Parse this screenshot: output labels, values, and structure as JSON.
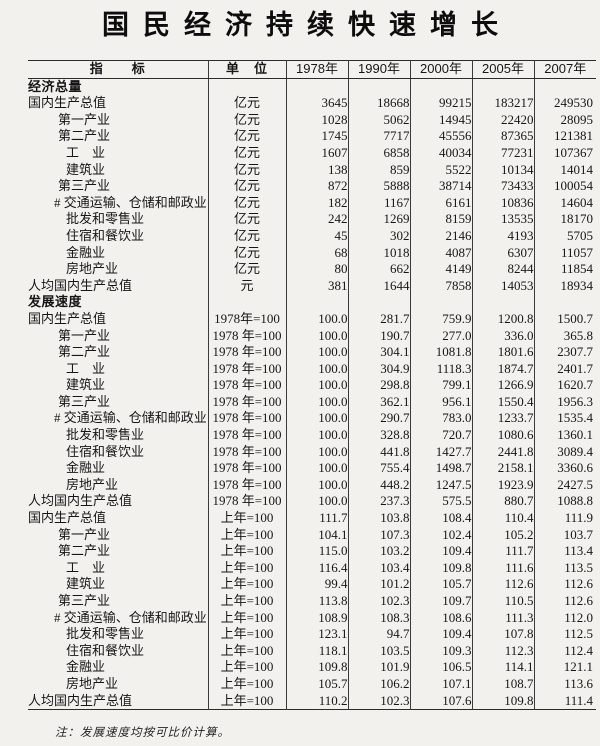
{
  "page": {
    "title": "国民经济持续快速增长",
    "footnote": "注：发展速度均按可比价计算。"
  },
  "colors": {
    "background": "#f3f1ee",
    "rule_line": "#2b2b2b",
    "text": "#141414"
  },
  "table": {
    "columns": [
      "指　　标",
      "单　位",
      "1978年",
      "1990年",
      "2000年",
      "2005年",
      "2007年"
    ],
    "rows": [
      {
        "label": "经济总量",
        "indent": 0,
        "section": true,
        "unit": "",
        "values": [
          "",
          "",
          "",
          "",
          ""
        ]
      },
      {
        "label": "国内生产总值",
        "indent": 0,
        "section": false,
        "unit": "亿元",
        "values": [
          "3645",
          "18668",
          "99215",
          "183217",
          "249530"
        ]
      },
      {
        "label": "第一产业",
        "indent": 1,
        "section": false,
        "unit": "亿元",
        "values": [
          "1028",
          "5062",
          "14945",
          "22420",
          "28095"
        ]
      },
      {
        "label": "第二产业",
        "indent": 1,
        "section": false,
        "unit": "亿元",
        "values": [
          "1745",
          "7717",
          "45556",
          "87365",
          "121381"
        ]
      },
      {
        "label": "工　业",
        "indent": 2,
        "section": false,
        "unit": "亿元",
        "values": [
          "1607",
          "6858",
          "40034",
          "77231",
          "107367"
        ]
      },
      {
        "label": "建筑业",
        "indent": 2,
        "section": false,
        "unit": "亿元",
        "values": [
          "138",
          "859",
          "5522",
          "10134",
          "14014"
        ]
      },
      {
        "label": "第三产业",
        "indent": 1,
        "section": false,
        "unit": "亿元",
        "values": [
          "872",
          "5888",
          "38714",
          "73433",
          "100054"
        ]
      },
      {
        "label": "# 交通运输、仓储和邮政业",
        "indent": "hash",
        "section": false,
        "unit": "亿元",
        "values": [
          "182",
          "1167",
          "6161",
          "10836",
          "14604"
        ]
      },
      {
        "label": "批发和零售业",
        "indent": 2,
        "section": false,
        "unit": "亿元",
        "values": [
          "242",
          "1269",
          "8159",
          "13535",
          "18170"
        ]
      },
      {
        "label": "住宿和餐饮业",
        "indent": 2,
        "section": false,
        "unit": "亿元",
        "values": [
          "45",
          "302",
          "2146",
          "4193",
          "5705"
        ]
      },
      {
        "label": "金融业",
        "indent": 2,
        "section": false,
        "unit": "亿元",
        "values": [
          "68",
          "1018",
          "4087",
          "6307",
          "11057"
        ]
      },
      {
        "label": "房地产业",
        "indent": 2,
        "section": false,
        "unit": "亿元",
        "values": [
          "80",
          "662",
          "4149",
          "8244",
          "11854"
        ]
      },
      {
        "label": "人均国内生产总值",
        "indent": 0,
        "section": false,
        "unit": "元",
        "values": [
          "381",
          "1644",
          "7858",
          "14053",
          "18934"
        ]
      },
      {
        "label": "发展速度",
        "indent": 0,
        "section": true,
        "unit": "",
        "values": [
          "",
          "",
          "",
          "",
          ""
        ]
      },
      {
        "label": "国内生产总值",
        "indent": 0,
        "section": false,
        "unit": "1978年=100",
        "values": [
          "100.0",
          "281.7",
          "759.9",
          "1200.8",
          "1500.7"
        ]
      },
      {
        "label": "第一产业",
        "indent": 1,
        "section": false,
        "unit": "1978 年=100",
        "values": [
          "100.0",
          "190.7",
          "277.0",
          "336.0",
          "365.8"
        ]
      },
      {
        "label": "第二产业",
        "indent": 1,
        "section": false,
        "unit": "1978 年=100",
        "values": [
          "100.0",
          "304.1",
          "1081.8",
          "1801.6",
          "2307.7"
        ]
      },
      {
        "label": "工　业",
        "indent": 2,
        "section": false,
        "unit": "1978 年=100",
        "values": [
          "100.0",
          "304.9",
          "1118.3",
          "1874.7",
          "2401.7"
        ]
      },
      {
        "label": "建筑业",
        "indent": 2,
        "section": false,
        "unit": "1978 年=100",
        "values": [
          "100.0",
          "298.8",
          "799.1",
          "1266.9",
          "1620.7"
        ]
      },
      {
        "label": "第三产业",
        "indent": 1,
        "section": false,
        "unit": "1978 年=100",
        "values": [
          "100.0",
          "362.1",
          "956.1",
          "1550.4",
          "1956.3"
        ]
      },
      {
        "label": "# 交通运输、仓储和邮政业",
        "indent": "hash",
        "section": false,
        "unit": "1978 年=100",
        "values": [
          "100.0",
          "290.7",
          "783.0",
          "1233.7",
          "1535.4"
        ]
      },
      {
        "label": "批发和零售业",
        "indent": 2,
        "section": false,
        "unit": "1978 年=100",
        "values": [
          "100.0",
          "328.8",
          "720.7",
          "1080.6",
          "1360.1"
        ]
      },
      {
        "label": "住宿和餐饮业",
        "indent": 2,
        "section": false,
        "unit": "1978 年=100",
        "values": [
          "100.0",
          "441.8",
          "1427.7",
          "2441.8",
          "3089.4"
        ]
      },
      {
        "label": "金融业",
        "indent": 2,
        "section": false,
        "unit": "1978 年=100",
        "values": [
          "100.0",
          "755.4",
          "1498.7",
          "2158.1",
          "3360.6"
        ]
      },
      {
        "label": "房地产业",
        "indent": 2,
        "section": false,
        "unit": "1978 年=100",
        "values": [
          "100.0",
          "448.2",
          "1247.5",
          "1923.9",
          "2427.5"
        ]
      },
      {
        "label": "人均国内生产总值",
        "indent": 0,
        "section": false,
        "unit": "1978 年=100",
        "values": [
          "100.0",
          "237.3",
          "575.5",
          "880.7",
          "1088.8"
        ]
      },
      {
        "label": "国内生产总值",
        "indent": 0,
        "section": false,
        "unit": "上年=100",
        "values": [
          "111.7",
          "103.8",
          "108.4",
          "110.4",
          "111.9"
        ]
      },
      {
        "label": "第一产业",
        "indent": 1,
        "section": false,
        "unit": "上年=100",
        "values": [
          "104.1",
          "107.3",
          "102.4",
          "105.2",
          "103.7"
        ]
      },
      {
        "label": "第二产业",
        "indent": 1,
        "section": false,
        "unit": "上年=100",
        "values": [
          "115.0",
          "103.2",
          "109.4",
          "111.7",
          "113.4"
        ]
      },
      {
        "label": "工　业",
        "indent": 2,
        "section": false,
        "unit": "上年=100",
        "values": [
          "116.4",
          "103.4",
          "109.8",
          "111.6",
          "113.5"
        ]
      },
      {
        "label": "建筑业",
        "indent": 2,
        "section": false,
        "unit": "上年=100",
        "values": [
          "99.4",
          "101.2",
          "105.7",
          "112.6",
          "112.6"
        ]
      },
      {
        "label": "第三产业",
        "indent": 1,
        "section": false,
        "unit": "上年=100",
        "values": [
          "113.8",
          "102.3",
          "109.7",
          "110.5",
          "112.6"
        ]
      },
      {
        "label": "# 交通运输、仓储和邮政业",
        "indent": "hash",
        "section": false,
        "unit": "上年=100",
        "values": [
          "108.9",
          "108.3",
          "108.6",
          "111.3",
          "112.0"
        ]
      },
      {
        "label": "批发和零售业",
        "indent": 2,
        "section": false,
        "unit": "上年=100",
        "values": [
          "123.1",
          "94.7",
          "109.4",
          "107.8",
          "112.5"
        ]
      },
      {
        "label": "住宿和餐饮业",
        "indent": 2,
        "section": false,
        "unit": "上年=100",
        "values": [
          "118.1",
          "103.5",
          "109.3",
          "112.3",
          "112.4"
        ]
      },
      {
        "label": "金融业",
        "indent": 2,
        "section": false,
        "unit": "上年=100",
        "values": [
          "109.8",
          "101.9",
          "106.5",
          "114.1",
          "121.1"
        ]
      },
      {
        "label": "房地产业",
        "indent": 2,
        "section": false,
        "unit": "上年=100",
        "values": [
          "105.7",
          "106.2",
          "107.1",
          "108.7",
          "113.6"
        ]
      },
      {
        "label": "人均国内生产总值",
        "indent": 0,
        "section": false,
        "unit": "上年=100",
        "values": [
          "110.2",
          "102.3",
          "107.6",
          "109.8",
          "111.4"
        ]
      }
    ]
  }
}
